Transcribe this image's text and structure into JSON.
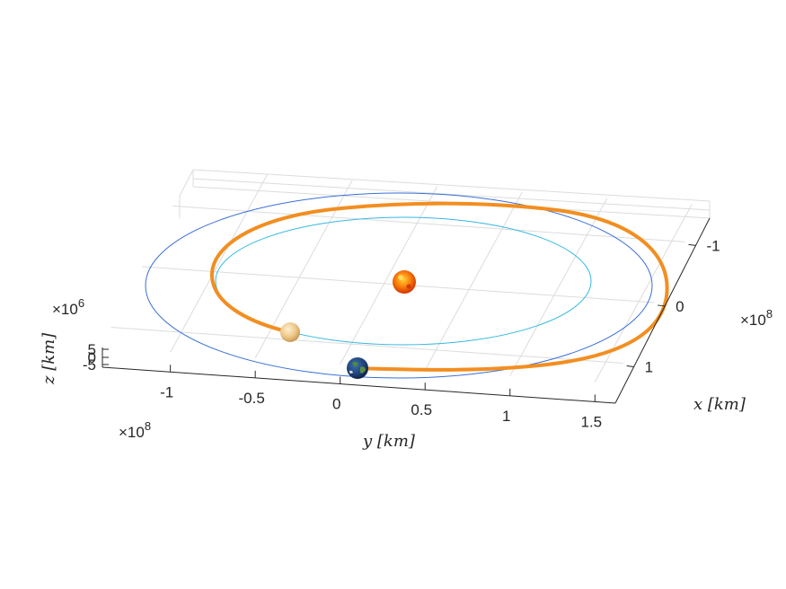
{
  "chart_data": {
    "type": "line3d",
    "title": "",
    "xlabel": "x [km]",
    "ylabel": "y [km]",
    "zlabel": "z [km]",
    "x_exponent": "×10^8",
    "y_exponent": "×10^8",
    "z_exponent": "×10^6",
    "x_ticks": [
      "-1",
      "0",
      "1"
    ],
    "y_ticks": [
      "-1",
      "-0.5",
      "0",
      "0.5",
      "1",
      "1.5"
    ],
    "z_ticks": [
      "5",
      "0",
      "-5"
    ],
    "grid": true,
    "series": [
      {
        "color": "#3a6fd6",
        "kind": "circular orbit",
        "radius_1e8km": 1.5,
        "linewidth": 1
      },
      {
        "color": "#35b8e0",
        "kind": "circular orbit",
        "radius_1e8km": 1.08,
        "linewidth": 1
      },
      {
        "color": "#f28e20",
        "kind": "transfer trajectory",
        "linewidth": 4
      }
    ],
    "bodies": [
      {
        "icon": "sun-icon",
        "x_1e8km": 0.0,
        "y_1e8km": 0.0
      },
      {
        "icon": "earth-icon",
        "x_1e8km": 1.5,
        "y_1e8km": 0.0
      },
      {
        "icon": "venus-icon",
        "x_1e8km": 1.0,
        "y_1e8km": -0.45
      }
    ]
  }
}
